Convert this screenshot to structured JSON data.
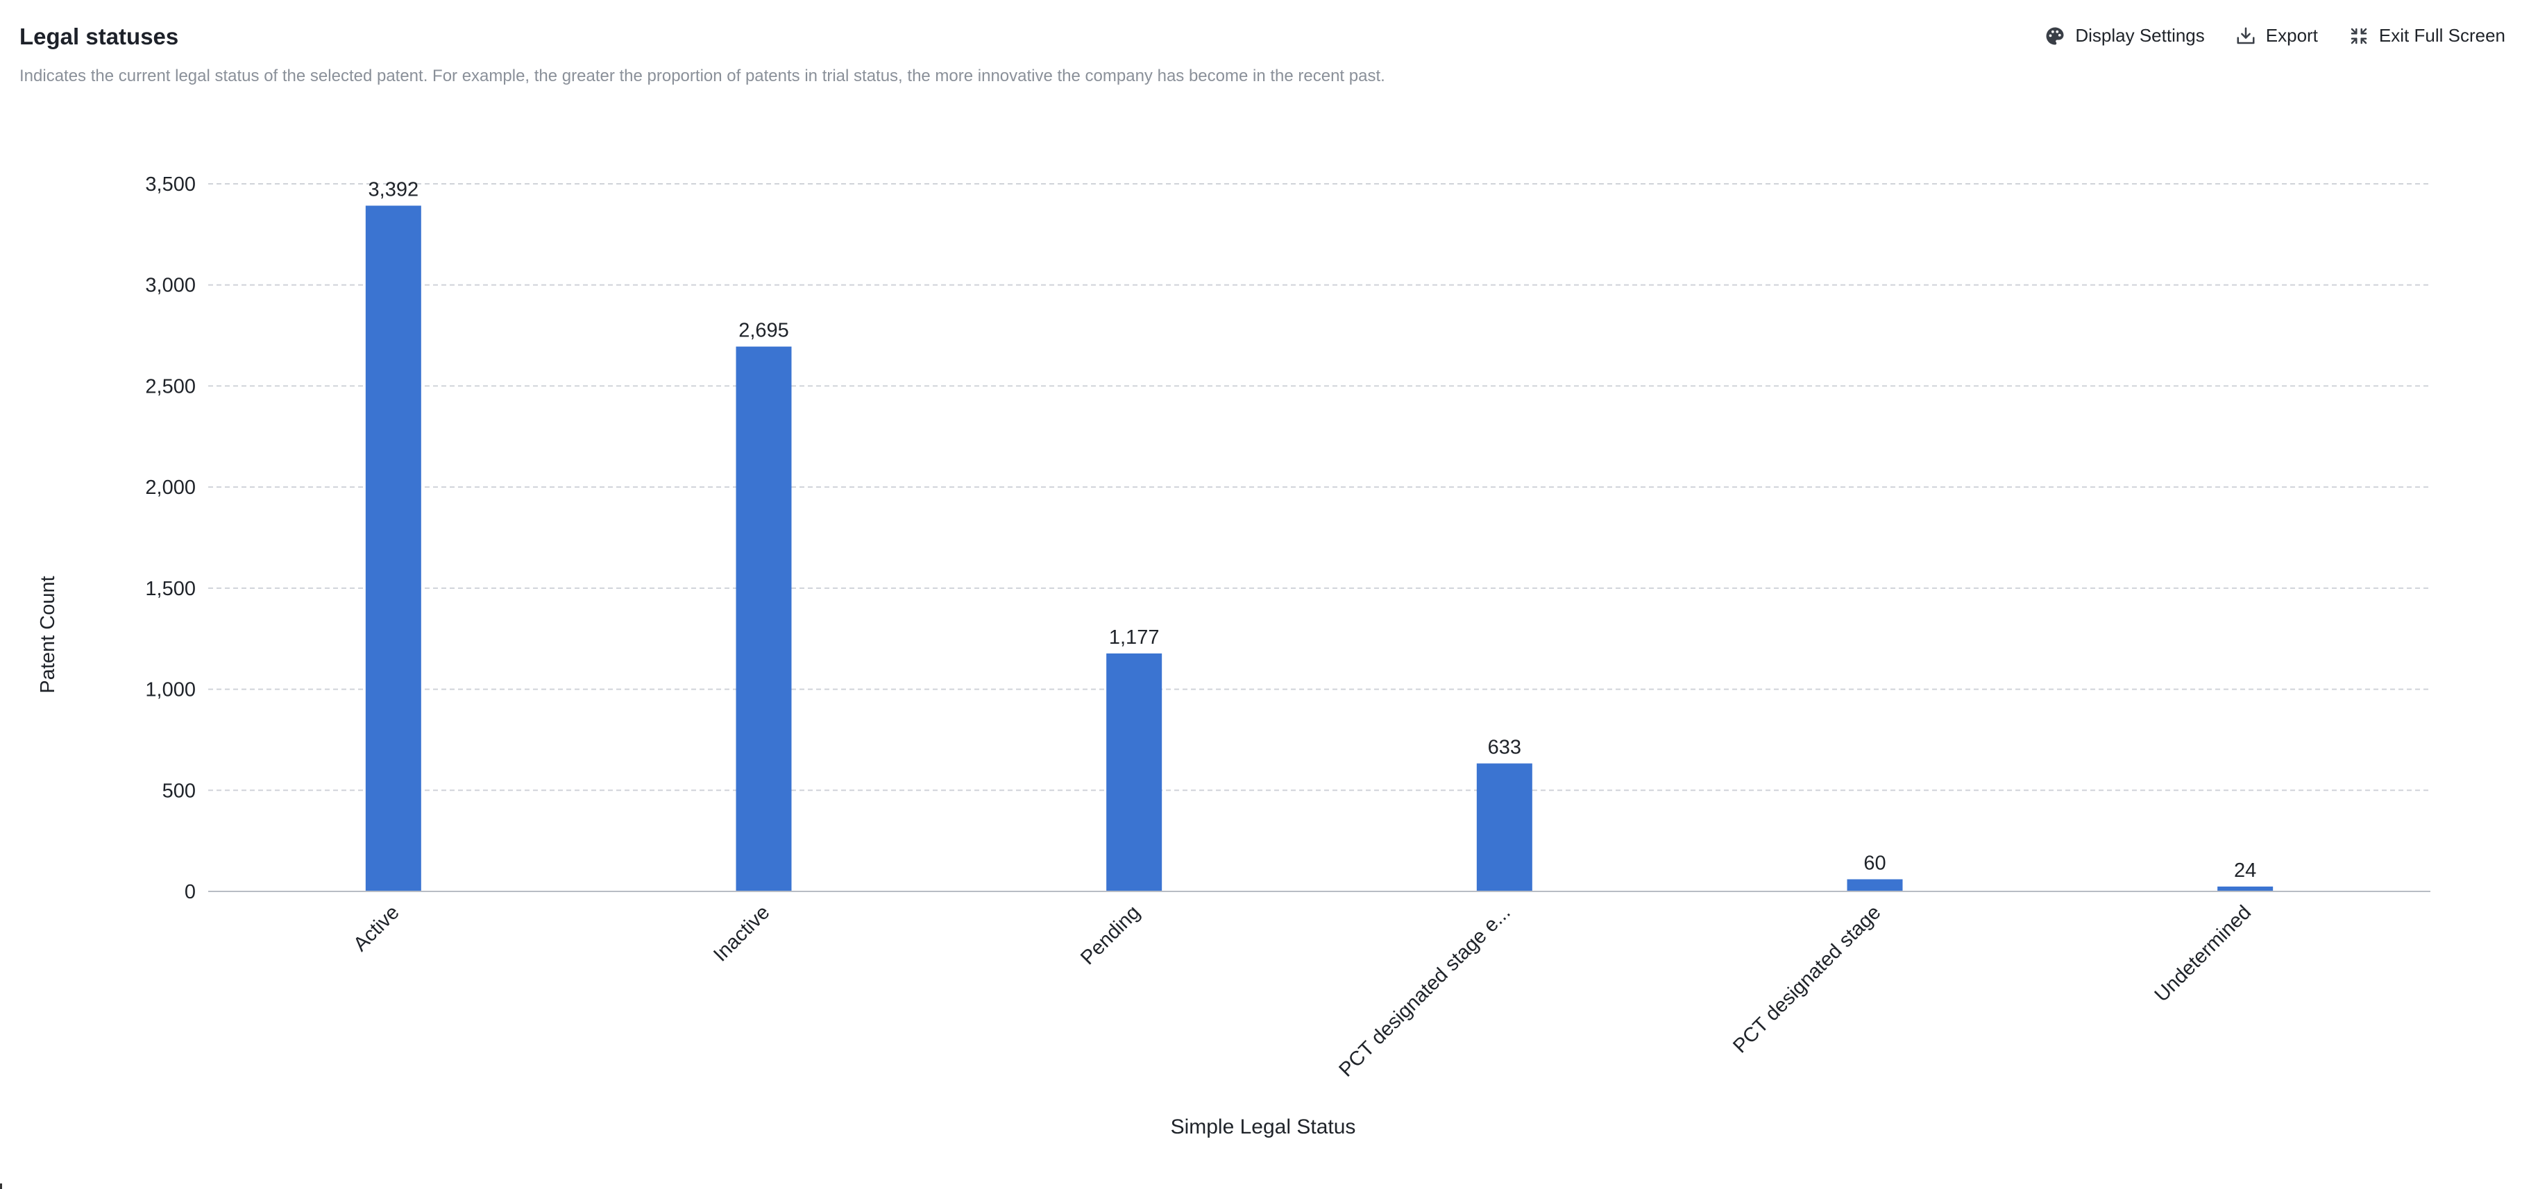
{
  "header": {
    "title": "Legal statuses",
    "subtitle": "Indicates the current legal status of the selected patent. For example, the greater the proportion of patents in trial status, the more innovative the company has become in the recent past."
  },
  "toolbar": {
    "display_settings": "Display Settings",
    "export": "Export",
    "exit_full_screen": "Exit Full Screen"
  },
  "chart_data": {
    "type": "bar",
    "title": "",
    "xlabel": "Simple Legal Status",
    "ylabel": "Patent Count",
    "categories": [
      "Active",
      "Inactive",
      "Pending",
      "PCT designated stage e...",
      "PCT designated stage",
      "Undetermined"
    ],
    "values": [
      3392,
      2695,
      1177,
      633,
      60,
      24
    ],
    "value_labels": [
      "3,392",
      "2,695",
      "1,177",
      "633",
      "60",
      "24"
    ],
    "ylim": [
      0,
      3500
    ],
    "yticks": [
      0,
      500,
      1000,
      1500,
      2000,
      2500,
      3000,
      3500
    ],
    "ytick_labels": [
      "0",
      "500",
      "1,000",
      "1,500",
      "2,000",
      "2,500",
      "3,000",
      "3,500"
    ],
    "grid": true,
    "bar_color": "#3b74d1",
    "grid_color": "#d0d3d9"
  }
}
